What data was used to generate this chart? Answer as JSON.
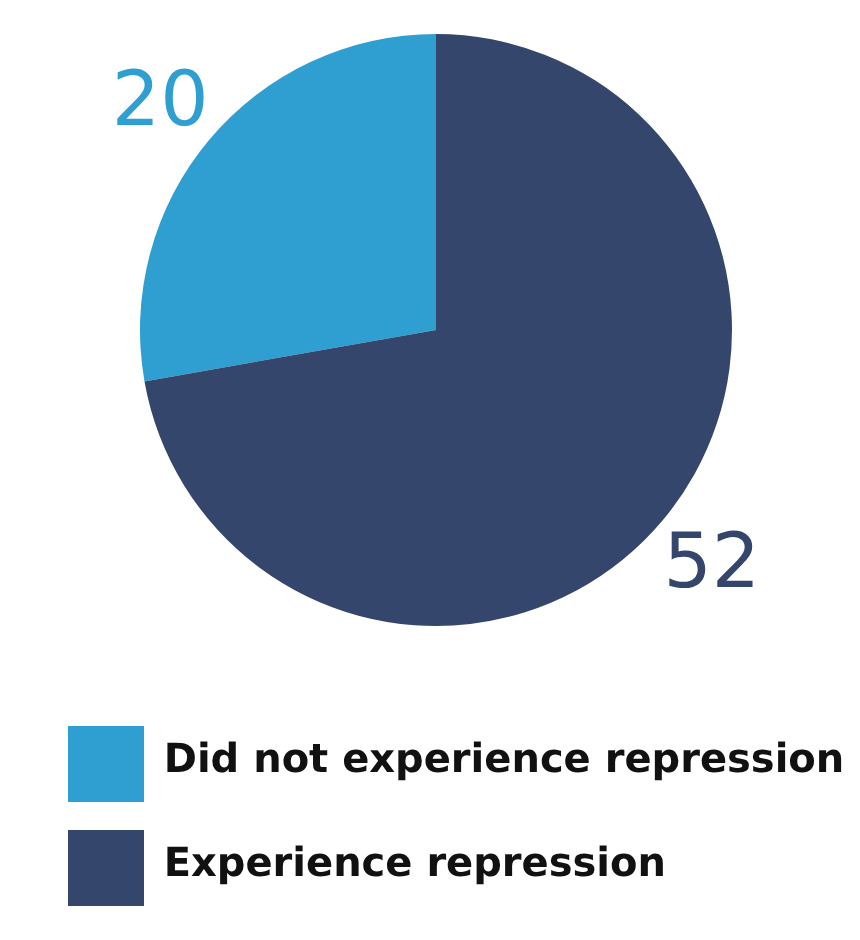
{
  "chart_data": {
    "type": "pie",
    "categories": [
      "Did not experience repression",
      "Experience repression"
    ],
    "values": [
      20,
      52
    ],
    "colors": [
      "#2f9fd1",
      "#34466b"
    ],
    "data_labels": true,
    "legend": "bottom"
  }
}
